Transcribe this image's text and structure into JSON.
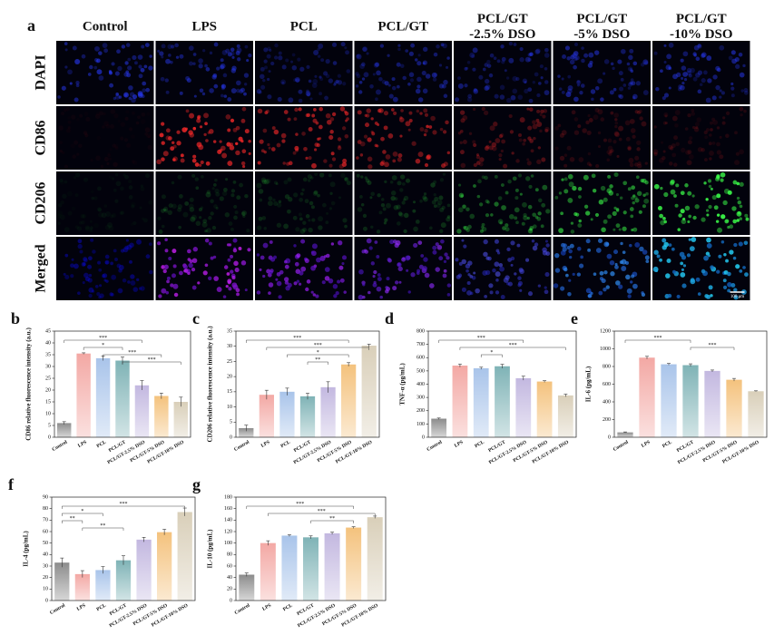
{
  "panel_a": {
    "label": "a",
    "columns": [
      "Control",
      "LPS",
      "PCL",
      "PCL/GT",
      "PCL/GT\n-2.5% DSO",
      "PCL/GT\n-5% DSO",
      "PCL/GT\n-10% DSO"
    ],
    "rows": [
      "DAPI",
      "CD86",
      "CD206",
      "Merged"
    ],
    "scale_bar": "100 μm"
  },
  "chart_data": [
    {
      "type": "bar",
      "panel": "b",
      "ylabel": "CD86 relative fluorescence intensity (a.u.)",
      "categories": [
        "Control",
        "LPS",
        "PCL",
        "PCL/GT",
        "PCL/GT-2.5% DSO",
        "PCL/GT-5% DSO",
        "PCL/GT-10% DSO"
      ],
      "values": [
        6,
        35.5,
        33.5,
        32.5,
        22,
        17.5,
        15
      ],
      "errors": [
        0.6,
        0.3,
        1,
        1.5,
        2,
        1.2,
        2
      ],
      "colors": [
        "#8c8c8c",
        "#f3a8a4",
        "#a9c4ea",
        "#7fb3b6",
        "#c3b8e0",
        "#f4c27d",
        "#d9cfb9"
      ],
      "ylim": [
        0,
        45
      ],
      "yticks": [
        0,
        5,
        10,
        15,
        20,
        25,
        30,
        35,
        40,
        45
      ],
      "annotations": [
        {
          "label": "***",
          "from": "Control",
          "to": "PCL/GT-2.5% DSO"
        },
        {
          "label": "*",
          "from": "LPS",
          "to": "PCL/GT"
        },
        {
          "label": "***",
          "from": "PCL",
          "to": "PCL/GT-5% DSO"
        },
        {
          "label": "***",
          "from": "PCL/GT",
          "to": "PCL/GT-10% DSO"
        }
      ]
    },
    {
      "type": "bar",
      "panel": "c",
      "ylabel": "CD206 relative fluorescence intensity (a.u.)",
      "categories": [
        "Control",
        "LPS",
        "PCL",
        "PCL/GT",
        "PCL/GT-2.5% DSO",
        "PCL/GT-5% DSO",
        "PCL/GT-10% DSO"
      ],
      "values": [
        3,
        14,
        15,
        13.5,
        16.5,
        24,
        30.2
      ],
      "errors": [
        1,
        1.5,
        1.2,
        1,
        1.8,
        0.6,
        0.5
      ],
      "colors": [
        "#8c8c8c",
        "#f3a8a4",
        "#a9c4ea",
        "#7fb3b6",
        "#c3b8e0",
        "#f4c27d",
        "#d9cfb9"
      ],
      "ylim": [
        0,
        35
      ],
      "yticks": [
        0,
        5,
        10,
        15,
        20,
        25,
        30,
        35
      ],
      "annotations": [
        {
          "label": "***",
          "from": "Control",
          "to": "PCL/GT-5% DSO"
        },
        {
          "label": "***",
          "from": "LPS",
          "to": "PCL/GT-10% DSO"
        },
        {
          "label": "*",
          "from": "PCL",
          "to": "PCL/GT-5% DSO"
        },
        {
          "label": "**",
          "from": "PCL/GT",
          "to": "PCL/GT-2.5% DSO"
        }
      ]
    },
    {
      "type": "bar",
      "panel": "d",
      "ylabel": "TNF-α (pg/mL)",
      "categories": [
        "Control",
        "LPS",
        "PCL",
        "PCL/GT",
        "PCL/GT-2.5% DSO",
        "PCL/GT-5% DSO",
        "PCL/GT-10% DSO"
      ],
      "values": [
        140,
        540,
        520,
        535,
        445,
        420,
        315
      ],
      "errors": [
        5,
        12,
        8,
        15,
        15,
        6,
        10
      ],
      "colors": [
        "#8c8c8c",
        "#f3a8a4",
        "#a9c4ea",
        "#7fb3b6",
        "#c3b8e0",
        "#f4c27d",
        "#d9cfb9"
      ],
      "ylim": [
        0,
        800
      ],
      "yticks": [
        0,
        100,
        200,
        300,
        400,
        500,
        600,
        700,
        800
      ],
      "annotations": [
        {
          "label": "***",
          "from": "Control",
          "to": "PCL/GT-2.5% DSO"
        },
        {
          "label": "***",
          "from": "LPS",
          "to": "PCL/GT-10% DSO"
        },
        {
          "label": "*",
          "from": "PCL",
          "to": "PCL/GT"
        }
      ]
    },
    {
      "type": "bar",
      "panel": "e",
      "ylabel": "IL-6 (pg/mL)",
      "categories": [
        "Control",
        "LPS",
        "PCL",
        "PCL/GT",
        "PCL/GT-2.5% DSO",
        "PCL/GT-5% DSO",
        "PCL/GT-10% DSO"
      ],
      "values": [
        55,
        900,
        825,
        815,
        750,
        650,
        520
      ],
      "errors": [
        5,
        15,
        10,
        15,
        10,
        15,
        5
      ],
      "colors": [
        "#8c8c8c",
        "#f3a8a4",
        "#a9c4ea",
        "#7fb3b6",
        "#c3b8e0",
        "#f4c27d",
        "#d9cfb9"
      ],
      "ylim": [
        0,
        1200
      ],
      "yticks": [
        0,
        200,
        400,
        600,
        800,
        1000,
        1200
      ],
      "annotations": [
        {
          "label": "***",
          "from": "Control",
          "to": "PCL/GT"
        },
        {
          "label": "***",
          "from": "PCL/GT",
          "to": "PCL/GT-5% DSO"
        }
      ]
    },
    {
      "type": "bar",
      "panel": "f",
      "ylabel": "IL-4 (pg/mL)",
      "categories": [
        "Control",
        "LPS",
        "PCL",
        "PCL/GT",
        "PCL/GT-2.5% DSO",
        "PCL/GT-5% DSO",
        "PCL/GT-10% DSO"
      ],
      "values": [
        33,
        23,
        26.5,
        35,
        53,
        59.5,
        77
      ],
      "errors": [
        4,
        3,
        3,
        4,
        2,
        2.5,
        3.5
      ],
      "colors": [
        "#8c8c8c",
        "#f3a8a4",
        "#a9c4ea",
        "#7fb3b6",
        "#c3b8e0",
        "#f4c27d",
        "#d9cfb9"
      ],
      "ylim": [
        0,
        90
      ],
      "yticks": [
        0,
        10,
        20,
        30,
        40,
        50,
        60,
        70,
        80,
        90
      ],
      "annotations": [
        {
          "label": "***",
          "from": "Control",
          "to": "PCL/GT-10% DSO"
        },
        {
          "label": "*",
          "from": "Control",
          "to": "PCL"
        },
        {
          "label": "**",
          "from": "Control",
          "to": "LPS"
        },
        {
          "label": "**",
          "from": "LPS",
          "to": "PCL/GT"
        }
      ]
    },
    {
      "type": "bar",
      "panel": "g",
      "ylabel": "IL-10 (pg/mL)",
      "categories": [
        "Control",
        "LPS",
        "PCL",
        "PCL/GT",
        "PCL/GT-2.5% DSO",
        "PCL/GT-5% DSO",
        "PCL/GT-10% DSO"
      ],
      "values": [
        45,
        100,
        113,
        110,
        117,
        127,
        145
      ],
      "errors": [
        3,
        4,
        1.5,
        2.5,
        2,
        1.5,
        2
      ],
      "colors": [
        "#8c8c8c",
        "#f3a8a4",
        "#a9c4ea",
        "#7fb3b6",
        "#c3b8e0",
        "#f4c27d",
        "#d9cfb9"
      ],
      "ylim": [
        0,
        180
      ],
      "yticks": [
        0,
        20,
        40,
        60,
        80,
        100,
        120,
        140,
        160,
        180
      ],
      "annotations": [
        {
          "label": "***",
          "from": "Control",
          "to": "PCL/GT-5% DSO"
        },
        {
          "label": "***",
          "from": "LPS",
          "to": "PCL/GT-10% DSO"
        },
        {
          "label": "**",
          "from": "PCL/GT",
          "to": "PCL/GT-5% DSO"
        }
      ]
    }
  ]
}
